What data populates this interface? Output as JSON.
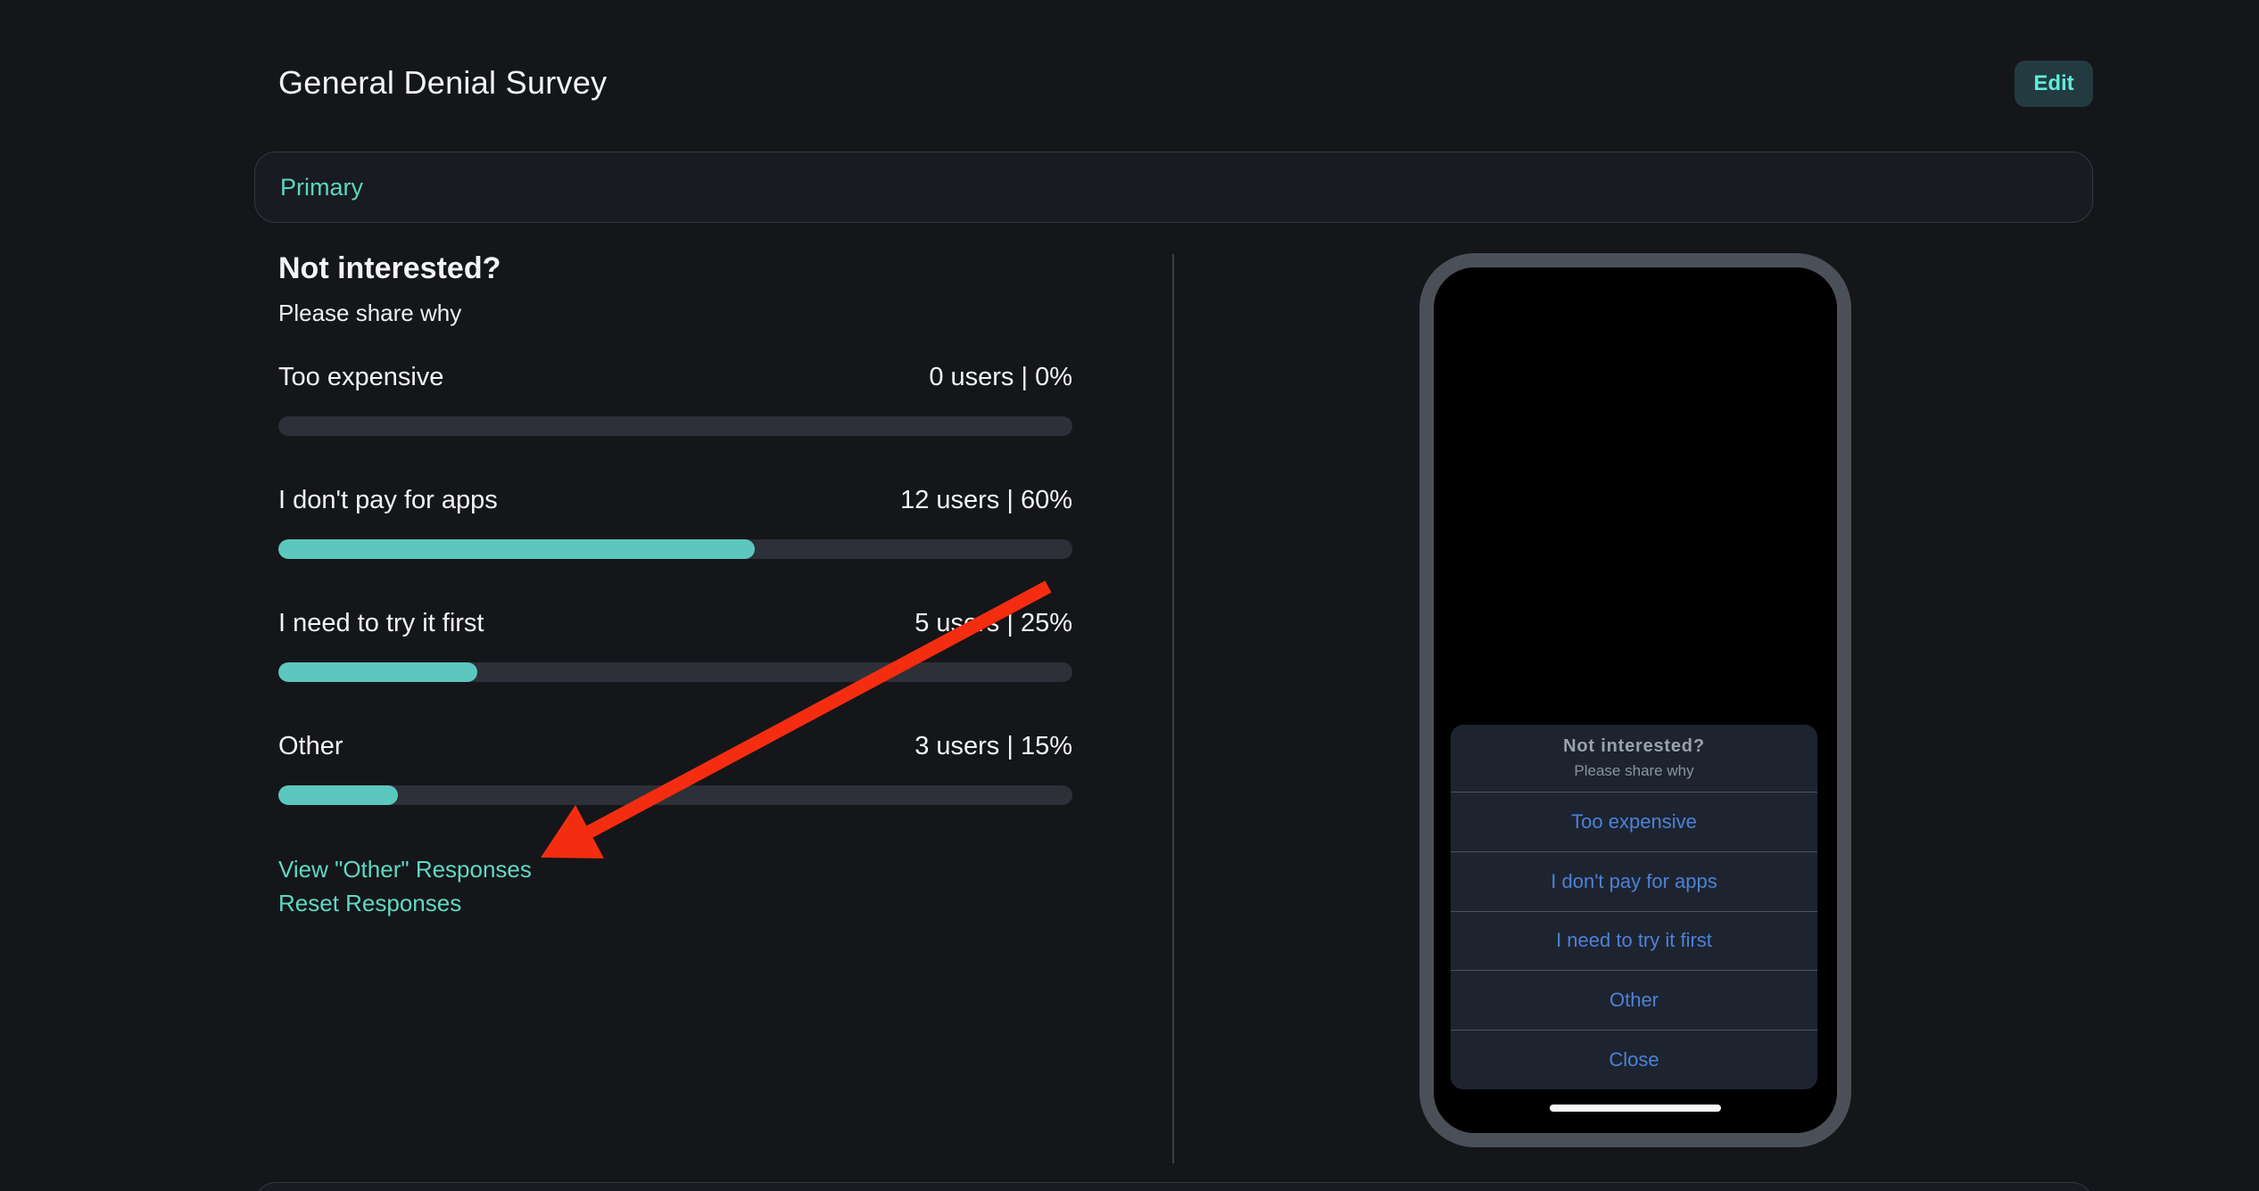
{
  "header": {
    "title": "General Denial Survey",
    "edit_label": "Edit"
  },
  "tabs": {
    "primary_label": "Primary"
  },
  "survey": {
    "question": "Not interested?",
    "subtitle": "Please share why",
    "options": [
      {
        "label": "Too expensive",
        "stat": "0 users | 0%",
        "percent_value": 0
      },
      {
        "label": "I don't pay for apps",
        "stat": "12 users | 60%",
        "percent_value": 60
      },
      {
        "label": "I need to try it first",
        "stat": "5 users | 25%",
        "percent_value": 25
      },
      {
        "label": "Other",
        "stat": "3 users | 15%",
        "percent_value": 15
      }
    ],
    "links": {
      "view_other": "View \"Other\" Responses",
      "reset": "Reset Responses"
    }
  },
  "phone_preview": {
    "sheet": {
      "title": "Not interested?",
      "subtitle": "Please share why",
      "buttons": [
        "Too expensive",
        "I don't pay for apps",
        "I need to try it first",
        "Other",
        "Close"
      ]
    }
  },
  "annotation": {
    "type": "arrow",
    "points_at": "view_other_responses_link"
  },
  "colors": {
    "page_bg": "#14161a",
    "panel_border": "#34383f",
    "accent_teal": "#5cc7bf",
    "link_teal": "#5fd9c4",
    "primary_label": "#5ad6c1",
    "edit_bg": "#243a41",
    "edit_text": "#5fedd9",
    "bar_track": "#2d3038",
    "phone_frame": "#4b5058",
    "sheet_bg": "#1d2430",
    "sheet_divider": "#4b5362",
    "sheet_blue": "#4d81d6",
    "arrow_red": "#f42d10"
  }
}
